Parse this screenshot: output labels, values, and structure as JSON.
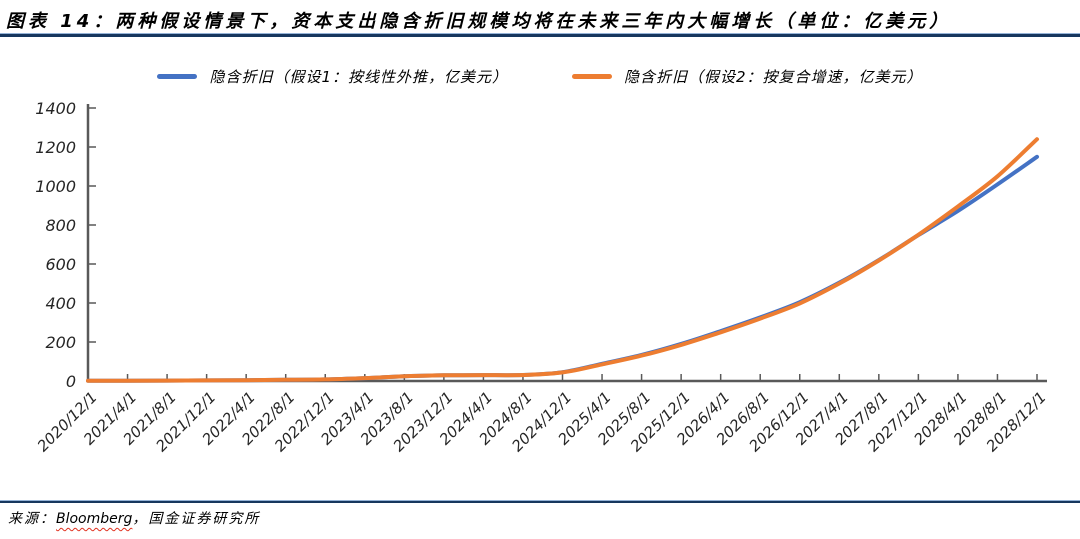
{
  "header": {
    "title": "图表 14：两种假设情景下，资本支出隐含折旧规模均将在未来三年内大幅增长（单位：亿美元）"
  },
  "footer": {
    "source_prefix": "来源：",
    "source_bloomberg": "Bloomberg",
    "source_rest": "，国金证券研究所"
  },
  "colors": {
    "series1_blue": "#4472C4",
    "series2_orange": "#ED7D31",
    "axis": "#595959",
    "tick_label": "#262626",
    "divider_dark": "#17375E",
    "divider_light": "#95B3D7",
    "squiggle": "#E0301E"
  },
  "chart_data": {
    "type": "line",
    "x": [
      "2020/12/1",
      "2021/4/1",
      "2021/8/1",
      "2021/12/1",
      "2022/4/1",
      "2022/8/1",
      "2022/12/1",
      "2023/4/1",
      "2023/8/1",
      "2023/12/1",
      "2024/4/1",
      "2024/8/1",
      "2024/12/1",
      "2025/4/1",
      "2025/8/1",
      "2025/12/1",
      "2026/4/1",
      "2026/8/1",
      "2026/12/1",
      "2027/4/1",
      "2027/8/1",
      "2027/12/1",
      "2028/4/1",
      "2028/8/1",
      "2028/12/1"
    ],
    "series": [
      {
        "name": "隐含折旧（假设1：按线性外推，亿美元）",
        "color_key": "series1_blue",
        "values": [
          1,
          1,
          2,
          3,
          4,
          6,
          8,
          15,
          24,
          29,
          30,
          31,
          45,
          88,
          134,
          190,
          256,
          326,
          404,
          504,
          620,
          748,
          872,
          1008,
          1150
        ]
      },
      {
        "name": "隐含折旧（假设2：按复合增速，亿美元）",
        "color_key": "series2_orange",
        "values": [
          1,
          1,
          2,
          3,
          4,
          6,
          8,
          15,
          24,
          29,
          30,
          31,
          44,
          85,
          130,
          185,
          250,
          320,
          398,
          500,
          618,
          750,
          895,
          1050,
          1240
        ]
      }
    ],
    "ylim": [
      0,
      1400
    ],
    "yticks": [
      0,
      200,
      400,
      600,
      800,
      1000,
      1200,
      1400
    ],
    "xlabel": "",
    "ylabel": "",
    "grid": false,
    "legend_position": "top"
  }
}
